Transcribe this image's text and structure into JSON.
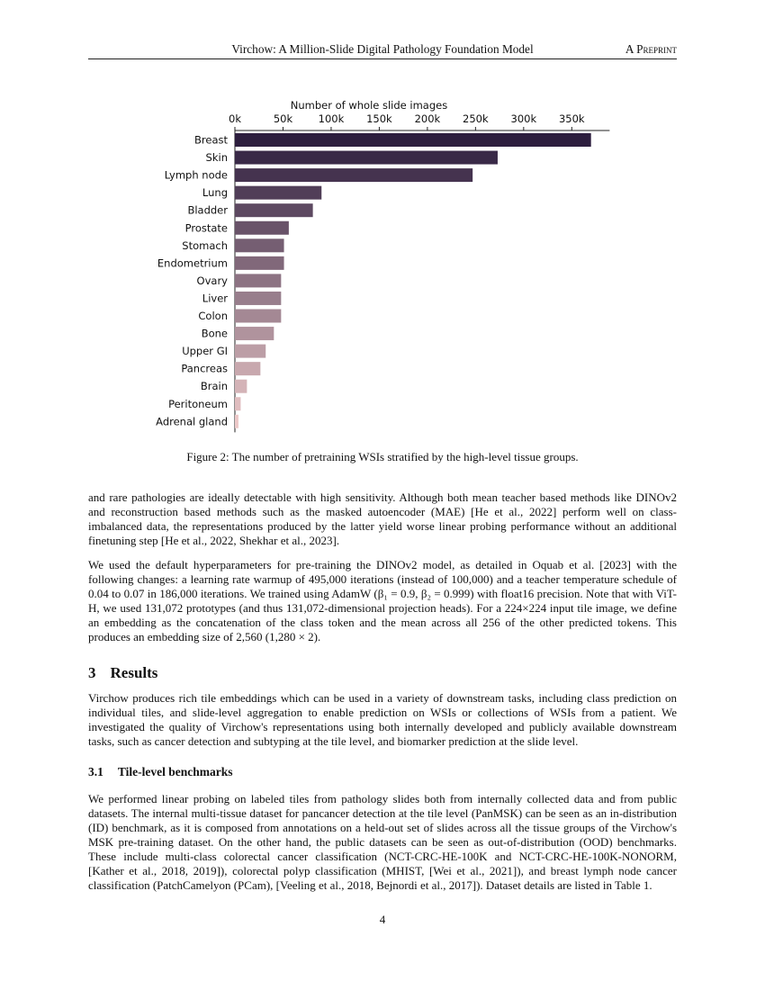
{
  "header": {
    "title": "Virchow: A Million-Slide Digital Pathology Foundation Model",
    "right": "A Preprint"
  },
  "chart_data": {
    "type": "bar",
    "orientation": "horizontal",
    "xlabel": "Number of whole slide images",
    "x_axis_position": "top",
    "xlim": [
      0,
      380000
    ],
    "xticks": [
      0,
      50000,
      100000,
      150000,
      200000,
      250000,
      300000,
      350000
    ],
    "xtick_labels": [
      "0k",
      "50k",
      "100k",
      "150k",
      "200k",
      "250k",
      "300k",
      "350k"
    ],
    "categories": [
      "Breast",
      "Skin",
      "Lymph node",
      "Lung",
      "Bladder",
      "Prostate",
      "Stomach",
      "Endometrium",
      "Ovary",
      "Liver",
      "Colon",
      "Bone",
      "Upper GI",
      "Pancreas",
      "Brain",
      "Peritoneum",
      "Adrenal gland"
    ],
    "values": [
      370000,
      273000,
      247000,
      90000,
      81000,
      56000,
      51000,
      51000,
      48000,
      48000,
      48000,
      40500,
      32000,
      26500,
      12500,
      6000,
      3700
    ],
    "colors": {
      "start": "#2d1e3e",
      "end": "#ecc8c8"
    },
    "grid": false
  },
  "caption": "Figure 2: The number of pretraining WSIs stratified by the high-level tissue groups.",
  "paragraphs": [
    "and rare pathologies are ideally detectable with high sensitivity. Although both mean teacher based methods like DINOv2 and reconstruction based methods such as the masked autoencoder (MAE) [He et al., 2022] perform well on class-imbalanced data, the representations produced by the latter yield worse linear probing performance without an additional finetuning step [He et al., 2022, Shekhar et al., 2023].",
    "We used the default hyperparameters for pre-training the DINOv2 model, as detailed in Oquab et al. [2023] with the following changes: a learning rate warmup of 495,000 iterations (instead of 100,000) and a teacher temperature schedule of 0.04 to 0.07 in 186,000 iterations. We trained using AdamW (β₁ = 0.9, β₂ = 0.999) with float16 precision. Note that with ViT-H, we used 131,072 prototypes (and thus 131,072-dimensional projection heads). For a 224×224 input tile image, we define an embedding as the concatenation of the class token and the mean across all 256 of the other predicted tokens. This produces an embedding size of 2,560 (1,280 × 2).",
    "Virchow produces rich tile embeddings which can be used in a variety of downstream tasks, including class prediction on individual tiles, and slide-level aggregation to enable prediction on WSIs or collections of WSIs from a patient. We investigated the quality of Virchow's representations using both internally developed and publicly available downstream tasks, such as cancer detection and subtyping at the tile level, and biomarker prediction at the slide level.",
    "We performed linear probing on labeled tiles from pathology slides both from internally collected data and from public datasets. The internal multi-tissue dataset for pancancer detection at the tile level (PanMSK) can be seen as an in-distribution (ID) benchmark, as it is composed from annotations on a held-out set of slides across all the tissue groups of the Virchow's MSK pre-training dataset. On the other hand, the public datasets can be seen as out-of-distribution (OOD) benchmarks. These include multi-class colorectal cancer classification (NCT-CRC-HE-100K and NCT-CRC-HE-100K-NONORM, [Kather et al., 2018, 2019]), colorectal polyp classification (MHIST, [Wei et al., 2021]), and breast lymph node cancer classification (PatchCamelyon (PCam), [Veeling et al., 2018, Bejnordi et al., 2017]). Dataset details are listed in Table 1."
  ],
  "section": {
    "number": "3",
    "title": "Results"
  },
  "subsection": {
    "number": "3.1",
    "title": "Tile-level benchmarks"
  },
  "page_number": "4"
}
